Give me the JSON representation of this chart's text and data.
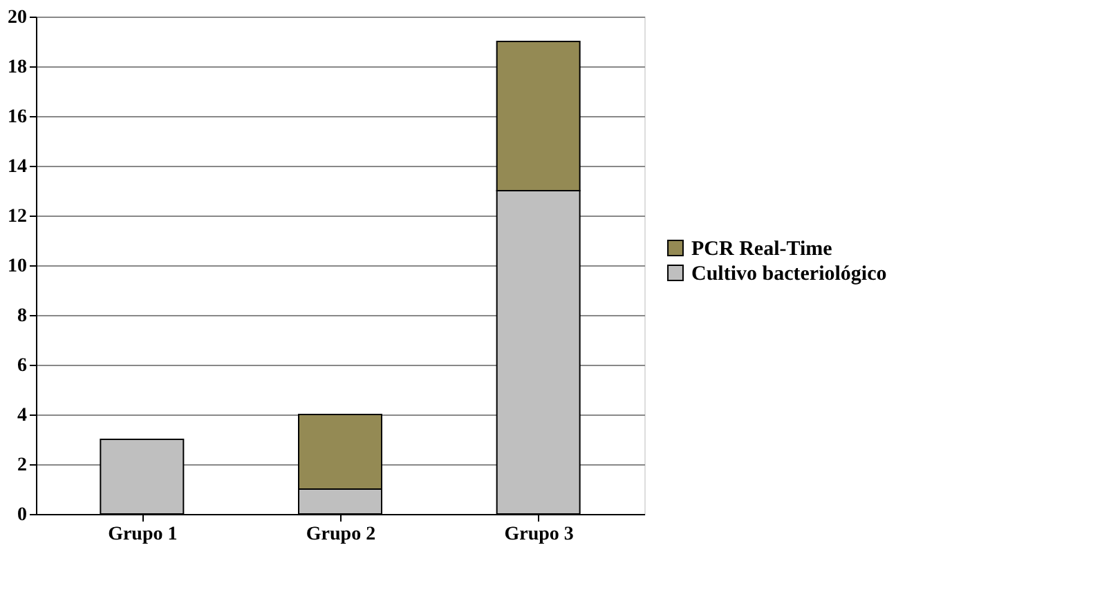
{
  "chart_data": {
    "type": "bar",
    "stacked": true,
    "categories": [
      "Grupo 1",
      "Grupo 2",
      "Grupo 3"
    ],
    "series": [
      {
        "name": "Cultivo bacteriológico",
        "color": "#bfbfbf",
        "values": [
          3,
          1,
          13
        ]
      },
      {
        "name": "PCR Real-Time",
        "color": "#948a54",
        "values": [
          null,
          3,
          6
        ]
      }
    ],
    "ylim": [
      0,
      20
    ],
    "yticks": [
      0,
      2,
      4,
      6,
      8,
      10,
      12,
      14,
      16,
      18,
      20
    ],
    "grid": "y",
    "legend": "right"
  }
}
